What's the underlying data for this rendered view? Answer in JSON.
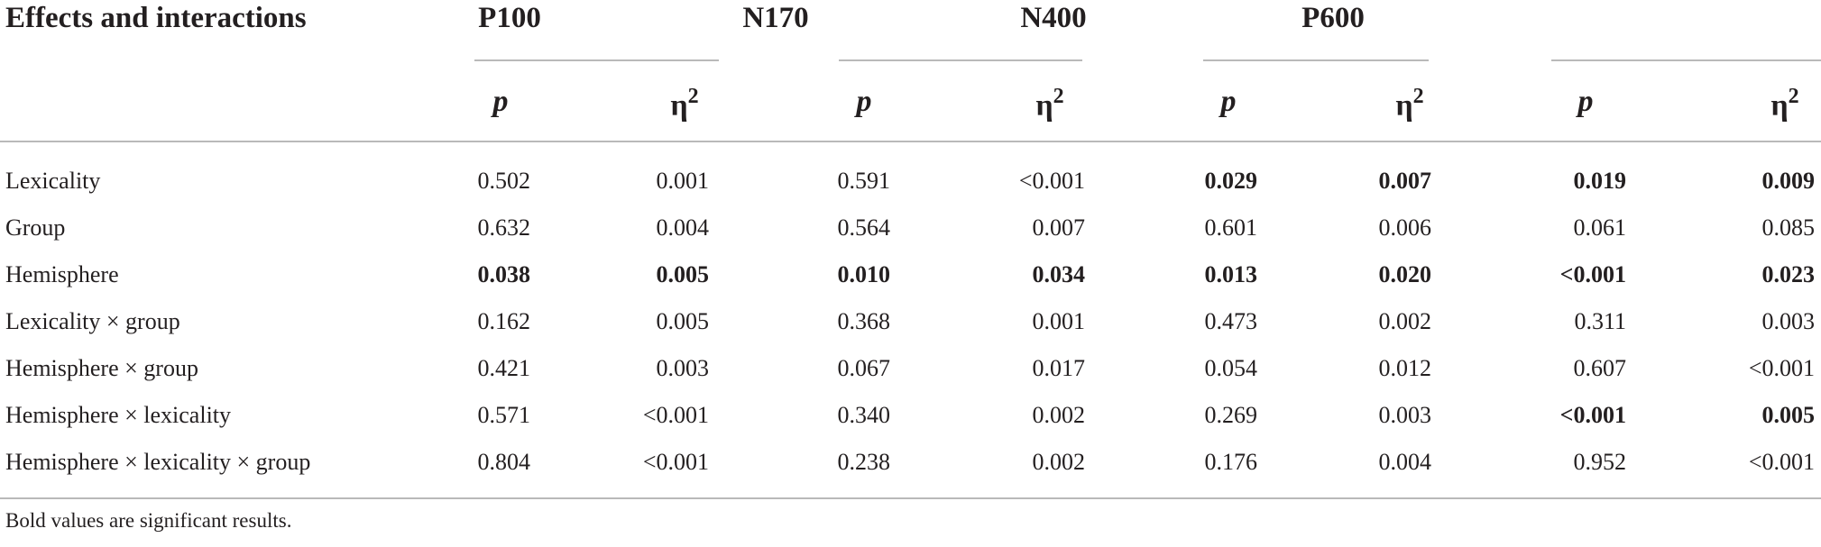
{
  "table": {
    "corner_header": "Effects and interactions",
    "components": [
      "P100",
      "N170",
      "N400",
      "P600"
    ],
    "stat_headers": [
      "p",
      "η2"
    ],
    "rows": [
      {
        "label": "Lexicality",
        "cells": [
          {
            "v": "0.502",
            "bold": false
          },
          {
            "v": "0.001",
            "bold": false
          },
          {
            "v": "0.591",
            "bold": false
          },
          {
            "v": "<0.001",
            "bold": false
          },
          {
            "v": "0.029",
            "bold": true
          },
          {
            "v": "0.007",
            "bold": true
          },
          {
            "v": "0.019",
            "bold": true
          },
          {
            "v": "0.009",
            "bold": true
          }
        ]
      },
      {
        "label": "Group",
        "cells": [
          {
            "v": "0.632",
            "bold": false
          },
          {
            "v": "0.004",
            "bold": false
          },
          {
            "v": "0.564",
            "bold": false
          },
          {
            "v": "0.007",
            "bold": false
          },
          {
            "v": "0.601",
            "bold": false
          },
          {
            "v": "0.006",
            "bold": false
          },
          {
            "v": "0.061",
            "bold": false
          },
          {
            "v": "0.085",
            "bold": false
          }
        ]
      },
      {
        "label": "Hemisphere",
        "cells": [
          {
            "v": "0.038",
            "bold": true
          },
          {
            "v": "0.005",
            "bold": true
          },
          {
            "v": "0.010",
            "bold": true
          },
          {
            "v": "0.034",
            "bold": true
          },
          {
            "v": "0.013",
            "bold": true
          },
          {
            "v": "0.020",
            "bold": true
          },
          {
            "v": "<0.001",
            "bold": true
          },
          {
            "v": "0.023",
            "bold": true
          }
        ]
      },
      {
        "label": "Lexicality × group",
        "cells": [
          {
            "v": "0.162",
            "bold": false
          },
          {
            "v": "0.005",
            "bold": false
          },
          {
            "v": "0.368",
            "bold": false
          },
          {
            "v": "0.001",
            "bold": false
          },
          {
            "v": "0.473",
            "bold": false
          },
          {
            "v": "0.002",
            "bold": false
          },
          {
            "v": "0.311",
            "bold": false
          },
          {
            "v": "0.003",
            "bold": false
          }
        ]
      },
      {
        "label": "Hemisphere × group",
        "cells": [
          {
            "v": "0.421",
            "bold": false
          },
          {
            "v": "0.003",
            "bold": false
          },
          {
            "v": "0.067",
            "bold": false
          },
          {
            "v": "0.017",
            "bold": false
          },
          {
            "v": "0.054",
            "bold": false
          },
          {
            "v": "0.012",
            "bold": false
          },
          {
            "v": "0.607",
            "bold": false
          },
          {
            "v": "<0.001",
            "bold": false
          }
        ]
      },
      {
        "label": "Hemisphere × lexicality",
        "cells": [
          {
            "v": "0.571",
            "bold": false
          },
          {
            "v": "<0.001",
            "bold": false
          },
          {
            "v": "0.340",
            "bold": false
          },
          {
            "v": "0.002",
            "bold": false
          },
          {
            "v": "0.269",
            "bold": false
          },
          {
            "v": "0.003",
            "bold": false
          },
          {
            "v": "<0.001",
            "bold": true
          },
          {
            "v": "0.005",
            "bold": true
          }
        ]
      },
      {
        "label": "Hemisphere × lexicality × group",
        "cells": [
          {
            "v": "0.804",
            "bold": false
          },
          {
            "v": "<0.001",
            "bold": false
          },
          {
            "v": "0.238",
            "bold": false
          },
          {
            "v": "0.002",
            "bold": false
          },
          {
            "v": "0.176",
            "bold": false
          },
          {
            "v": "0.004",
            "bold": false
          },
          {
            "v": "0.952",
            "bold": false
          },
          {
            "v": "<0.001",
            "bold": false
          }
        ]
      }
    ],
    "footnote": "Bold values are significant results."
  }
}
